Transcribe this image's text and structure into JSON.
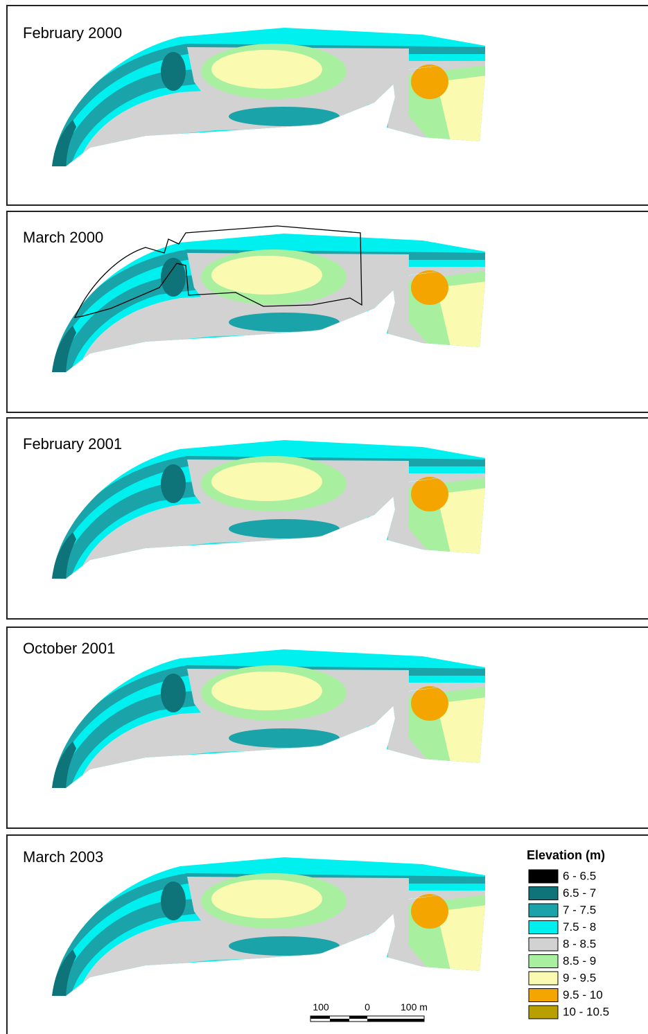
{
  "panels": [
    {
      "title": "February 2000"
    },
    {
      "title": "March 2000"
    },
    {
      "title": "February 2001"
    },
    {
      "title": "October 2001"
    },
    {
      "title": "March 2003"
    }
  ],
  "legend": {
    "title": "Elevation (m)",
    "items": [
      {
        "label": "6 - 6.5",
        "color": "#000000"
      },
      {
        "label": "6.5 - 7",
        "color": "#0e7479"
      },
      {
        "label": "7 - 7.5",
        "color": "#1aa3a8"
      },
      {
        "label": "7.5 - 8",
        "color": "#00f0f0"
      },
      {
        "label": "8 - 8.5",
        "color": "#d2d2d2"
      },
      {
        "label": "8.5 - 9",
        "color": "#a8f0a0"
      },
      {
        "label": "9 - 9.5",
        "color": "#fafab0"
      },
      {
        "label": "9.5 - 10",
        "color": "#f5a500"
      },
      {
        "label": "10 - 10.5",
        "color": "#b8a000"
      }
    ]
  },
  "scale_bar": {
    "labels": [
      "100",
      "0",
      "100 m"
    ]
  }
}
